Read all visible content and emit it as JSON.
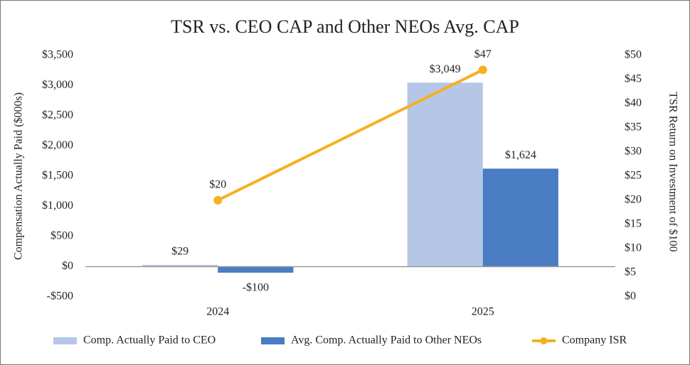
{
  "chart_data": {
    "type": "bar_line",
    "title": "TSR vs. CEO CAP and Other NEOs Avg. CAP",
    "y_label": "Compensation Actually Paid ($000s)",
    "y2_label": "TSR Return on Investment of $100",
    "categories": [
      "2024",
      "2025"
    ],
    "series": [
      {
        "name": "Comp. Actually Paid to CEO",
        "type": "bar",
        "color": "#b4c7e7",
        "values": [
          29,
          3049
        ],
        "value_labels": [
          "$29",
          "$3,049"
        ]
      },
      {
        "name": "Avg. Comp. Actually Paid to Other NEOs",
        "type": "bar",
        "color": "#4a7cc4",
        "values": [
          -100,
          1624
        ],
        "value_labels": [
          "-$100",
          "$1,624"
        ]
      },
      {
        "name": "Company ISR",
        "type": "line",
        "axis": "y2",
        "color": "#f5b021",
        "values": [
          20,
          47
        ],
        "value_labels": [
          "$20",
          "$47"
        ]
      }
    ],
    "ylim": [
      -500,
      3500
    ],
    "yticks": [
      {
        "value": -500,
        "label": "-$500"
      },
      {
        "value": 0,
        "label": "$0"
      },
      {
        "value": 500,
        "label": "$500"
      },
      {
        "value": 1000,
        "label": "$1,000"
      },
      {
        "value": 1500,
        "label": "$1,500"
      },
      {
        "value": 2000,
        "label": "$2,000"
      },
      {
        "value": 2500,
        "label": "$2,500"
      },
      {
        "value": 3000,
        "label": "$3,000"
      },
      {
        "value": 3500,
        "label": "$3,500"
      }
    ],
    "y2lim": [
      0,
      50
    ],
    "y2ticks": [
      {
        "value": 0,
        "label": "$0"
      },
      {
        "value": 5,
        "label": "$5"
      },
      {
        "value": 10,
        "label": "$10"
      },
      {
        "value": 15,
        "label": "$15"
      },
      {
        "value": 20,
        "label": "$20"
      },
      {
        "value": 25,
        "label": "$25"
      },
      {
        "value": 30,
        "label": "$30"
      },
      {
        "value": 35,
        "label": "$35"
      },
      {
        "value": 40,
        "label": "$40"
      },
      {
        "value": 45,
        "label": "$45"
      },
      {
        "value": 50,
        "label": "$50"
      }
    ],
    "grid": false,
    "legend": "bottom"
  }
}
